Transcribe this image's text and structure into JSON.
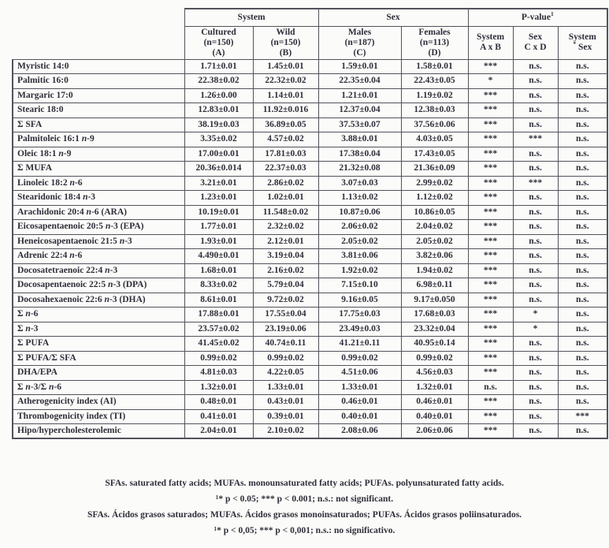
{
  "colors": {
    "ink": "#2e2e3a",
    "border": "#52525c",
    "page-bg": "#fbfbf9"
  },
  "table": {
    "header": {
      "system_group": "System",
      "sex_group": "Sex",
      "pvalue_group": "P-value",
      "pvalue_sup": "1",
      "col_a": {
        "l1": "Cultured",
        "l2": "(n=150)",
        "l3": "(A)"
      },
      "col_b": {
        "l1": "Wild",
        "l2": "(n=150)",
        "l3": "(B)"
      },
      "col_c": {
        "l1": "Males",
        "l2": "(n=187)",
        "l3": "(C)"
      },
      "col_d": {
        "l1": "Females",
        "l2": "(n=113)",
        "l3": "(D)"
      },
      "col_p1": {
        "l1": "System",
        "l2": "A x B"
      },
      "col_p2": {
        "l1": "Sex",
        "l2": "C x D"
      },
      "col_p3": {
        "l1": "System",
        "sup": "*",
        "l2": "Sex"
      }
    },
    "rows": [
      {
        "label": "Myristic 14:0",
        "values": [
          "1.71±0.01",
          "1.45±0.01",
          "1.59±0.01",
          "1.58±0.01",
          "***",
          "n.s.",
          "n.s."
        ]
      },
      {
        "label": "Palmitic 16:0",
        "values": [
          "22.38±0.02",
          "22.32±0.02",
          "22.35±0.04",
          "22.43±0.05",
          "*",
          "n.s.",
          "n.s."
        ]
      },
      {
        "label": "Margaric 17:0",
        "values": [
          "1.26±0.00",
          "1.14±0.01",
          "1.21±0.01",
          "1.19±0.02",
          "***",
          "n.s.",
          "n.s."
        ]
      },
      {
        "label": "Stearic 18:0",
        "values": [
          "12.83±0.01",
          "11.92±0.016",
          "12.37±0.04",
          "12.38±0.03",
          "***",
          "n.s.",
          "n.s."
        ]
      },
      {
        "label": "Σ SFA",
        "values": [
          "38.19±0.03",
          "36.89±0.05",
          "37.53±0.07",
          "37.56±0.06",
          "***",
          "n.s.",
          "n.s."
        ]
      },
      {
        "label": "Palmitoleic 16:1 n-9",
        "values": [
          "3.35±0.02",
          "4.57±0.02",
          "3.88±0.01",
          "4.03±0.05",
          "***",
          "***",
          "n.s."
        ]
      },
      {
        "label": "Oleic 18:1 n-9",
        "values": [
          "17.00±0.01",
          "17.81±0.03",
          "17.38±0.04",
          "17.43±0.05",
          "***",
          "n.s.",
          "n.s."
        ]
      },
      {
        "label": "Σ MUFA",
        "values": [
          "20.36±0.014",
          "22.37±0.03",
          "21.32±0.08",
          "21.36±0.09",
          "***",
          "n.s.",
          "n.s."
        ]
      },
      {
        "label": "Linoleic 18:2 n-6",
        "values": [
          "3.21±0.01",
          "2.86±0.02",
          "3.07±0.03",
          "2.99±0.02",
          "***",
          "***",
          "n.s."
        ]
      },
      {
        "label": "Stearidonic 18:4 n-3",
        "values": [
          "1.23±0.01",
          "1.02±0.01",
          "1.13±0.02",
          "1.12±0.02",
          "***",
          "n.s.",
          "n.s."
        ]
      },
      {
        "label": "Arachidonic 20:4 n-6 (ARA)",
        "values": [
          "10.19±0.01",
          "11.548±0.02",
          "10.87±0.06",
          "10.86±0.05",
          "***",
          "n.s.",
          "n.s."
        ]
      },
      {
        "label": "Eicosapentaenoic 20:5 n-3 (EPA)",
        "values": [
          "1.77±0.01",
          "2.32±0.02",
          "2.06±0.02",
          "2.04±0.02",
          "***",
          "n.s.",
          "n.s."
        ]
      },
      {
        "label": "Heneicosapentaenoic 21:5 n-3",
        "values": [
          "1.93±0.01",
          "2.12±0.01",
          "2.05±0.02",
          "2.05±0.02",
          "***",
          "n.s.",
          "n.s."
        ]
      },
      {
        "label": "Adrenic 22:4 n-6",
        "values": [
          "4.490±0.01",
          "3.19±0.04",
          "3.81±0.06",
          "3.82±0.06",
          "***",
          "n.s.",
          "n.s."
        ]
      },
      {
        "label": "Docosatetraenoic 22:4 n-3",
        "values": [
          "1.68±0.01",
          "2.16±0.02",
          "1.92±0.02",
          "1.94±0.02",
          "***",
          "n.s.",
          "n.s."
        ]
      },
      {
        "label": "Docosapentaenoic 22:5 n-3 (DPA)",
        "values": [
          "8.33±0.02",
          "5.79±0.04",
          "7.15±0.10",
          "6.98±0.11",
          "***",
          "n.s.",
          "n.s."
        ]
      },
      {
        "label": "Docosahexaenoic 22:6 n-3 (DHA)",
        "values": [
          "8.61±0.01",
          "9.72±0.02",
          "9.16±0.05",
          "9.17±0.050",
          "***",
          "n.s.",
          "n.s."
        ]
      },
      {
        "label": "Σ n-6",
        "values": [
          "17.88±0.01",
          "17.55±0.04",
          "17.75±0.03",
          "17.68±0.03",
          "***",
          "*",
          "n.s."
        ]
      },
      {
        "label": "Σ n-3",
        "values": [
          "23.57±0.02",
          "23.19±0.06",
          "23.49±0.03",
          "23.32±0.04",
          "***",
          "*",
          "n.s."
        ]
      },
      {
        "label": "Σ PUFA",
        "values": [
          "41.45±0.02",
          "40.74±0.11",
          "41.21±0.11",
          "40.95±0.14",
          "***",
          "n.s.",
          "n.s."
        ]
      },
      {
        "label": "Σ PUFA/Σ SFA",
        "values": [
          "0.99±0.02",
          "0.99±0.02",
          "0.99±0.02",
          "0.99±0.02",
          "***",
          "n.s.",
          "n.s."
        ]
      },
      {
        "label": "DHA/EPA",
        "values": [
          "4.81±0.03",
          "4.22±0.05",
          "4.51±0.06",
          "4.56±0.03",
          "***",
          "n.s.",
          "n.s."
        ]
      },
      {
        "label": "Σ n-3/Σ n-6",
        "values": [
          "1.32±0.01",
          "1.33±0.01",
          "1.33±0.01",
          "1.32±0.01",
          "n.s.",
          "n.s.",
          "n.s."
        ]
      },
      {
        "label": "Atherogenicity index (AI)",
        "values": [
          "0.48±0.01",
          "0.43±0.01",
          "0.46±0.01",
          "0.46±0.01",
          "***",
          "n.s.",
          "n.s."
        ]
      },
      {
        "label": "Thrombogenicity index (TI)",
        "values": [
          "0.41±0.01",
          "0.39±0.01",
          "0.40±0.01",
          "0.40±0.01",
          "***",
          "n.s.",
          "***"
        ]
      },
      {
        "label": "Hipo/hypercholesterolemic",
        "values": [
          "2.04±0.01",
          "2.10±0.02",
          "2.08±0.06",
          "2.06±0.06",
          "***",
          "n.s.",
          "n.s."
        ]
      }
    ]
  },
  "footnotes": [
    "SFAs. saturated fatty acids; MUFAs. monounsaturated fatty acids; PUFAs. polyunsaturated fatty acids.",
    "¹* p < 0.05; *** p < 0.001; n.s.: not significant.",
    "SFAs. Ácidos grasos saturados; MUFAs. Ácidos grasos monoinsaturados; PUFAs. Ácidos grasos poliinsaturados.",
    "¹* p < 0,05; *** p < 0,001; n.s.: no significativo."
  ]
}
